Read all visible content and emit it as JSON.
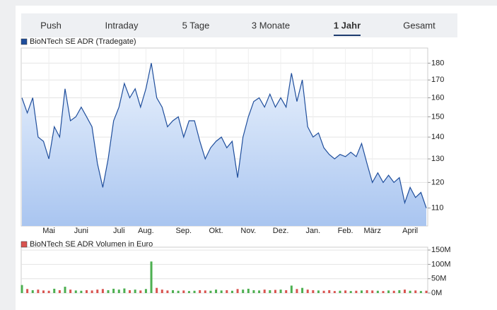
{
  "tabs": {
    "items": [
      "Push",
      "Intraday",
      "5 Tage",
      "3 Monate",
      "1 Jahr",
      "Gesamt"
    ],
    "active": 4
  },
  "chart_data": [
    {
      "type": "line",
      "legend": "BioNTech SE ADR (Tradegate)",
      "color": "#1f4e9c",
      "categories": [
        null,
        null,
        null,
        null,
        null,
        "Mai",
        null,
        null,
        null,
        null,
        null,
        "Juni",
        null,
        null,
        null,
        null,
        null,
        null,
        "Juli",
        null,
        null,
        null,
        null,
        "Aug.",
        null,
        null,
        null,
        null,
        null,
        null,
        "Sep.",
        null,
        null,
        null,
        null,
        null,
        "Okt.",
        null,
        null,
        null,
        null,
        null,
        "Nov.",
        null,
        null,
        null,
        null,
        null,
        "Dez.",
        null,
        null,
        null,
        null,
        null,
        "Jan.",
        null,
        null,
        null,
        null,
        null,
        "Feb.",
        null,
        null,
        null,
        null,
        "März",
        null,
        null,
        null,
        null,
        null,
        null,
        "April",
        null,
        null,
        null
      ],
      "values": [
        160,
        152,
        160,
        140,
        138,
        130,
        145,
        140,
        165,
        148,
        150,
        155,
        150,
        145,
        128,
        118,
        130,
        148,
        155,
        168,
        160,
        165,
        155,
        165,
        180,
        160,
        155,
        145,
        148,
        150,
        140,
        148,
        148,
        138,
        130,
        135,
        138,
        140,
        135,
        138,
        122,
        140,
        150,
        158,
        160,
        155,
        162,
        155,
        160,
        155,
        174,
        158,
        170,
        145,
        140,
        142,
        135,
        132,
        130,
        132,
        131,
        133,
        131,
        137,
        128,
        120,
        124,
        120,
        123,
        120,
        122,
        112,
        118,
        114,
        116,
        110
      ],
      "ylim": [
        103.5,
        189.5
      ],
      "log": true,
      "yticks": [
        110,
        120,
        130,
        140,
        150,
        160,
        170,
        180
      ],
      "grid": true
    },
    {
      "type": "bar",
      "legend": "BioNTech SE ADR Volumen in Euro",
      "up_color": "#4caf50",
      "down_color": "#d9534f",
      "values": [
        28,
        14,
        10,
        12,
        9,
        8,
        15,
        10,
        22,
        12,
        9,
        8,
        10,
        9,
        12,
        14,
        10,
        15,
        12,
        16,
        10,
        12,
        9,
        14,
        110,
        18,
        12,
        9,
        10,
        8,
        9,
        7,
        8,
        10,
        9,
        8,
        12,
        9,
        10,
        8,
        14,
        12,
        15,
        10,
        9,
        12,
        10,
        11,
        12,
        10,
        26,
        14,
        18,
        12,
        10,
        9,
        8,
        10,
        7,
        8,
        9,
        7,
        8,
        9,
        10,
        9,
        8,
        7,
        9,
        8,
        10,
        12,
        8,
        9,
        7,
        8
      ],
      "ylim": [
        0,
        160
      ],
      "yticks": [
        {
          "value": 0,
          "label": "0M"
        },
        {
          "value": 50,
          "label": "50M"
        },
        {
          "value": 100,
          "label": "100M"
        },
        {
          "value": 150,
          "label": "150M"
        }
      ],
      "grid": true
    }
  ]
}
